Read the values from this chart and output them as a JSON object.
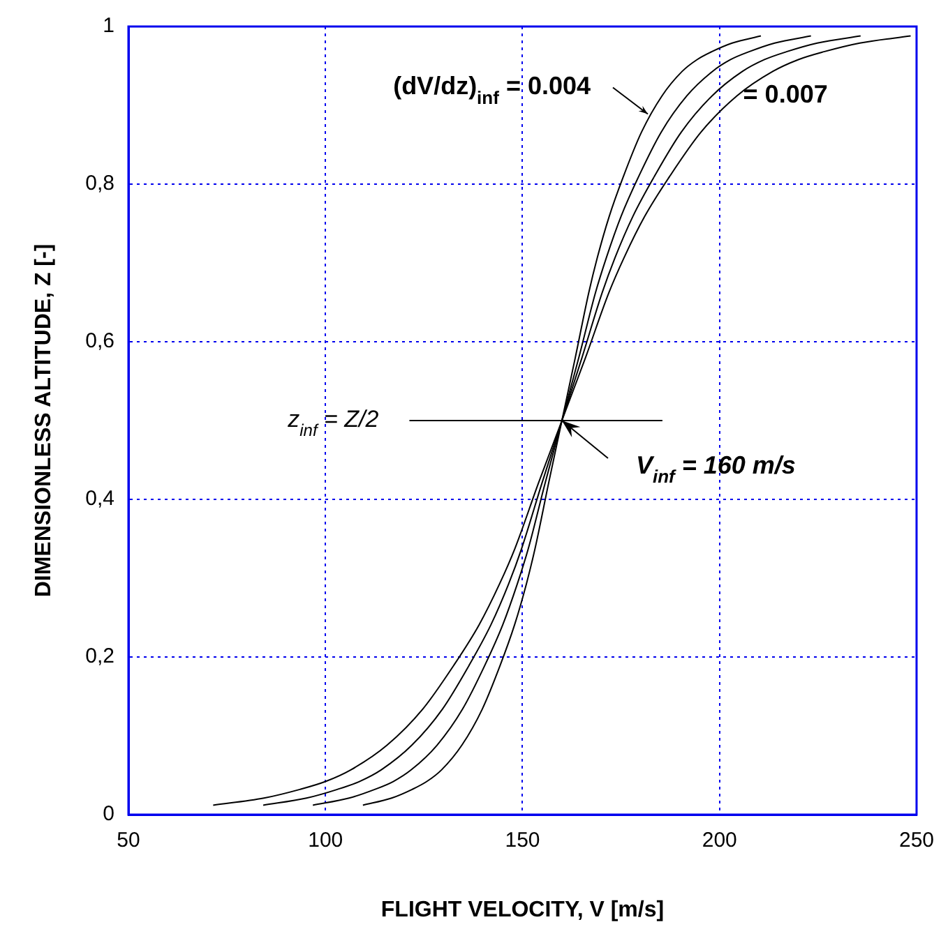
{
  "chart_data": {
    "type": "line",
    "xlabel": "FLIGHT VELOCITY, V [m/s]",
    "ylabel": "DIMENSIONLESS ALTITUDE, Z [-]",
    "xlim": [
      50,
      250
    ],
    "xticks": [
      50,
      100,
      150,
      200,
      250
    ],
    "ylim": [
      0,
      1
    ],
    "yticks": [
      0,
      {
        "value": 0.2,
        "label": "0,2"
      },
      {
        "value": 0.4,
        "label": "0,4"
      },
      {
        "value": 0.6,
        "label": "0,6"
      },
      {
        "value": 0.8,
        "label": "0,8"
      },
      1
    ],
    "grid": true,
    "legend": false,
    "marker": "none",
    "line_style": "solid",
    "series": [
      {
        "color": "#000000",
        "x": [
          71.5,
          84.4,
          93.5,
          100,
          106.5,
          115.6,
          124.7,
          132.5,
          139,
          144.2,
          148.1,
          154,
          160,
          166,
          171.9,
          175.8,
          181,
          187.5,
          195.3,
          204.4,
          213.5,
          220,
          226.5,
          235.6,
          248.5
        ],
        "values": [
          0.012,
          0.021,
          0.032,
          0.042,
          0.057,
          0.088,
          0.134,
          0.189,
          0.241,
          0.293,
          0.338,
          0.42,
          0.5,
          0.58,
          0.662,
          0.707,
          0.759,
          0.811,
          0.866,
          0.912,
          0.943,
          0.958,
          0.968,
          0.979,
          0.988
        ]
      },
      {
        "color": "#000000",
        "x": [
          84.2,
          95.2,
          103,
          108.6,
          114.2,
          121.9,
          129.7,
          136.4,
          142,
          146.5,
          149.8,
          154.9,
          160,
          165.1,
          170.2,
          173.5,
          178,
          183.6,
          190.3,
          198.1,
          205.8,
          211.4,
          217,
          224.8,
          235.8
        ],
        "values": [
          0.012,
          0.021,
          0.032,
          0.042,
          0.057,
          0.088,
          0.134,
          0.189,
          0.241,
          0.293,
          0.338,
          0.42,
          0.5,
          0.58,
          0.662,
          0.707,
          0.759,
          0.811,
          0.866,
          0.912,
          0.943,
          0.958,
          0.968,
          0.979,
          0.988
        ]
      },
      {
        "color": "#000000",
        "x": [
          96.8,
          106,
          112.5,
          117.2,
          121.8,
          128.3,
          134.8,
          140.4,
          145,
          148.7,
          151.5,
          155.7,
          160,
          164.3,
          168.5,
          171.3,
          175,
          179.6,
          185.2,
          191.7,
          198.2,
          202.8,
          207.5,
          214,
          223.2
        ],
        "values": [
          0.012,
          0.021,
          0.032,
          0.042,
          0.057,
          0.088,
          0.134,
          0.189,
          0.241,
          0.293,
          0.338,
          0.42,
          0.5,
          0.58,
          0.662,
          0.707,
          0.759,
          0.811,
          0.866,
          0.912,
          0.943,
          0.958,
          0.968,
          0.979,
          0.988
        ]
      },
      {
        "color": "#000000",
        "x": [
          109.5,
          116.8,
          122,
          125.7,
          129.5,
          134.6,
          139.8,
          144.3,
          148,
          151,
          153.2,
          156.6,
          160,
          163.4,
          166.8,
          169,
          172,
          175.7,
          180.2,
          185.4,
          190.5,
          194.3,
          198,
          203.2,
          210.5
        ],
        "values": [
          0.012,
          0.021,
          0.032,
          0.042,
          0.057,
          0.088,
          0.134,
          0.189,
          0.241,
          0.293,
          0.338,
          0.42,
          0.5,
          0.58,
          0.662,
          0.707,
          0.759,
          0.811,
          0.866,
          0.912,
          0.943,
          0.958,
          0.968,
          0.979,
          0.988
        ]
      },
      {
        "color": "#000000",
        "x": [
          121.3,
          185.5
        ],
        "values": [
          0.5,
          0.5
        ]
      }
    ],
    "annotations": [
      {
        "text": "(dV/dz)$_{inf}$ = 0.004",
        "x": 181.8,
        "y": 0.889
      },
      "= 0.007",
      {
        "text": "z$_{inf}$ = Z/2",
        "x": 121.3,
        "y": 0.5
      },
      {
        "text": "V$_{inf}$ = 160 m/s",
        "x": 160,
        "y": 0.5
      }
    ]
  }
}
